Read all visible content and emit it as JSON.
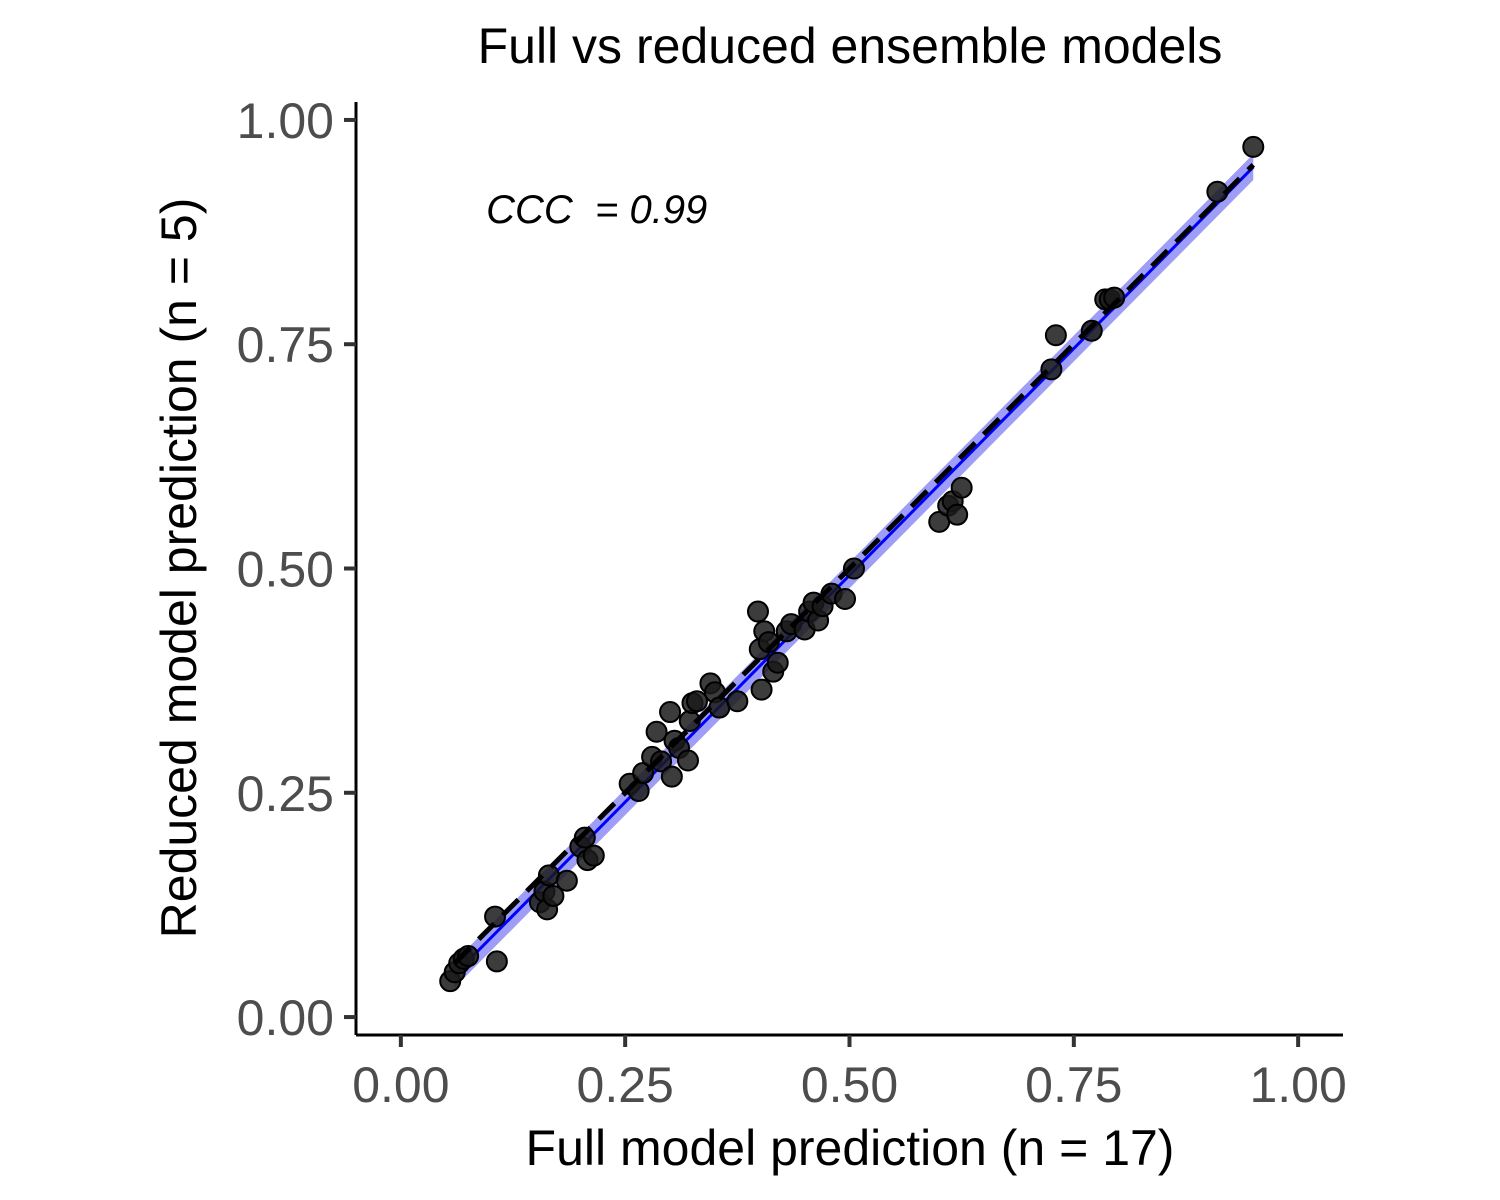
{
  "chart_data": {
    "type": "scatter",
    "title": "Full vs reduced ensemble models",
    "xlabel": "Full model prediction (n = 17)",
    "ylabel": "Reduced model prediction (n = 5)",
    "xlim": [
      -0.05,
      1.05
    ],
    "ylim": [
      -0.02,
      1.02
    ],
    "x_ticks": [
      0.0,
      0.25,
      0.5,
      0.75,
      1.0
    ],
    "y_ticks": [
      0.0,
      0.25,
      0.5,
      0.75,
      1.0
    ],
    "x_tick_labels": [
      "0.00",
      "0.25",
      "0.50",
      "0.75",
      "1.00"
    ],
    "y_tick_labels": [
      "0.00",
      "0.25",
      "0.50",
      "0.75",
      "1.00"
    ],
    "annotation": "CCC  = 0.99",
    "annotation_pos": [
      0.095,
      0.885
    ],
    "colors": {
      "points": "#1a1a1a",
      "fit_band": "#9999f5",
      "fit_line": "#0000ff",
      "identity": "#000000",
      "axis": "#000000",
      "tick_label": "#4d4d4d"
    },
    "fit_line": {
      "x0": 0.06,
      "x1": 0.95,
      "y0_low": 0.033,
      "y0_high": 0.062,
      "y1_low": 0.933,
      "y1_high": 0.962
    },
    "identity_line": {
      "x0": 0.06,
      "x1": 0.95
    },
    "series": [
      {
        "name": "predictions",
        "points": [
          [
            0.055,
            0.04
          ],
          [
            0.06,
            0.05
          ],
          [
            0.065,
            0.06
          ],
          [
            0.07,
            0.065
          ],
          [
            0.075,
            0.068
          ],
          [
            0.105,
            0.112
          ],
          [
            0.107,
            0.062
          ],
          [
            0.155,
            0.128
          ],
          [
            0.16,
            0.14
          ],
          [
            0.163,
            0.12
          ],
          [
            0.165,
            0.158
          ],
          [
            0.17,
            0.135
          ],
          [
            0.185,
            0.152
          ],
          [
            0.2,
            0.19
          ],
          [
            0.205,
            0.2
          ],
          [
            0.208,
            0.175
          ],
          [
            0.215,
            0.18
          ],
          [
            0.255,
            0.26
          ],
          [
            0.265,
            0.252
          ],
          [
            0.27,
            0.272
          ],
          [
            0.28,
            0.29
          ],
          [
            0.285,
            0.318
          ],
          [
            0.29,
            0.285
          ],
          [
            0.3,
            0.34
          ],
          [
            0.302,
            0.268
          ],
          [
            0.305,
            0.308
          ],
          [
            0.31,
            0.3
          ],
          [
            0.32,
            0.286
          ],
          [
            0.322,
            0.33
          ],
          [
            0.325,
            0.35
          ],
          [
            0.33,
            0.352
          ],
          [
            0.345,
            0.372
          ],
          [
            0.35,
            0.362
          ],
          [
            0.355,
            0.345
          ],
          [
            0.375,
            0.352
          ],
          [
            0.398,
            0.452
          ],
          [
            0.4,
            0.41
          ],
          [
            0.402,
            0.365
          ],
          [
            0.405,
            0.43
          ],
          [
            0.41,
            0.418
          ],
          [
            0.415,
            0.385
          ],
          [
            0.42,
            0.395
          ],
          [
            0.43,
            0.43
          ],
          [
            0.435,
            0.438
          ],
          [
            0.45,
            0.432
          ],
          [
            0.455,
            0.452
          ],
          [
            0.46,
            0.462
          ],
          [
            0.465,
            0.442
          ],
          [
            0.47,
            0.458
          ],
          [
            0.48,
            0.472
          ],
          [
            0.495,
            0.466
          ],
          [
            0.505,
            0.5
          ],
          [
            0.6,
            0.552
          ],
          [
            0.61,
            0.57
          ],
          [
            0.615,
            0.575
          ],
          [
            0.62,
            0.56
          ],
          [
            0.625,
            0.59
          ],
          [
            0.725,
            0.722
          ],
          [
            0.73,
            0.76
          ],
          [
            0.77,
            0.765
          ],
          [
            0.785,
            0.8
          ],
          [
            0.79,
            0.8
          ],
          [
            0.795,
            0.802
          ],
          [
            0.91,
            0.92
          ],
          [
            0.95,
            0.97
          ]
        ]
      }
    ]
  }
}
